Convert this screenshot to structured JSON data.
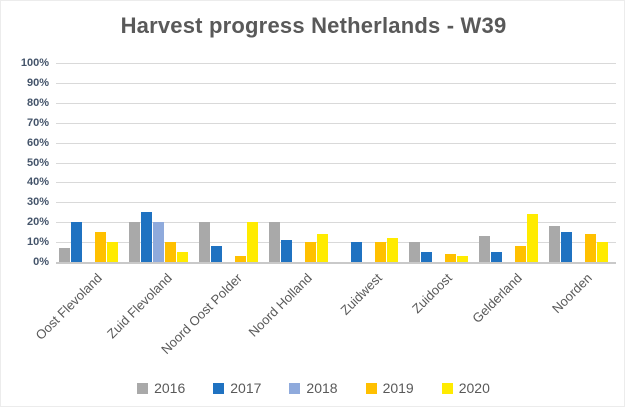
{
  "title": "Harvest progress Netherlands - W39",
  "chart_data": {
    "type": "bar",
    "title": "Harvest progress Netherlands - W39",
    "categories": [
      "Oost Flevoland",
      "Zuid Flevoland",
      "Noord Oost Polder",
      "Noord Holland",
      "Zuidwest",
      "Zuidoost",
      "Gelderland",
      "Noorden"
    ],
    "series": [
      {
        "name": "2016",
        "color": "#a9a9a9",
        "values": [
          7,
          20,
          20,
          20,
          0,
          10,
          13,
          18
        ]
      },
      {
        "name": "2017",
        "color": "#1f72c1",
        "values": [
          20,
          25,
          8,
          11,
          10,
          5,
          5,
          15
        ]
      },
      {
        "name": "2018",
        "color": "#8faadc",
        "values": [
          0,
          20,
          0,
          0,
          0,
          0,
          0,
          0
        ]
      },
      {
        "name": "2019",
        "color": "#ffc000",
        "values": [
          15,
          10,
          3,
          10,
          10,
          4,
          8,
          14
        ]
      },
      {
        "name": "2020",
        "color": "#ffeb00",
        "values": [
          10,
          5,
          20,
          14,
          12,
          3,
          24,
          10
        ]
      }
    ],
    "xlabel": "",
    "ylabel": "",
    "ylim": [
      0,
      100
    ],
    "y_tick_step": 10,
    "y_tick_labels": [
      "0%",
      "10%",
      "20%",
      "30%",
      "40%",
      "50%",
      "60%",
      "70%",
      "80%",
      "90%",
      "100%"
    ],
    "grid": true,
    "legend_position": "bottom"
  },
  "colors": {
    "title_text": "#595959",
    "axis_label_text": "#44546a",
    "category_text": "#595959",
    "gridline": "#d9d9d9",
    "background": "#ffffff"
  }
}
